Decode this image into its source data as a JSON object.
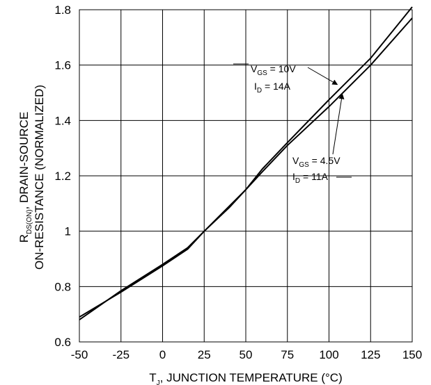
{
  "chart_data": {
    "type": "line",
    "xlabel": {
      "main": "T",
      "sub": "J",
      "rest": ", JUNCTION TEMPERATURE (°C)"
    },
    "ylabel": {
      "line1_main": "R",
      "line1_sub": "DS(ON)",
      "line1_rest": ", DRAIN-SOURCE",
      "line2": "ON-RESISTANCE (NORMALIZED)"
    },
    "xlim": [
      -50,
      150
    ],
    "ylim": [
      0.6,
      1.8
    ],
    "x_ticks": [
      -50,
      -25,
      0,
      25,
      50,
      75,
      100,
      125,
      150
    ],
    "x_tick_labels": [
      "-50",
      "-25",
      "0",
      "25",
      "50",
      "75",
      "100",
      "125",
      "150"
    ],
    "y_ticks": [
      0.6,
      0.8,
      1.0,
      1.2,
      1.4,
      1.6,
      1.8
    ],
    "y_tick_labels": [
      "0.6",
      "0.8",
      "1",
      "1.2",
      "1.4",
      "1.6",
      "1.8"
    ],
    "grid": true,
    "series": [
      {
        "x": [
          -50,
          -25,
          0,
          15,
          25,
          40,
          50,
          60,
          75,
          100,
          125,
          150
        ],
        "y": [
          0.69,
          0.78,
          0.875,
          0.935,
          1.0,
          1.085,
          1.15,
          1.225,
          1.32,
          1.475,
          1.625,
          1.81
        ]
      },
      {
        "x": [
          -50,
          -25,
          0,
          15,
          25,
          40,
          50,
          60,
          75,
          100,
          125,
          150
        ],
        "y": [
          0.68,
          0.785,
          0.88,
          0.94,
          1.0,
          1.09,
          1.15,
          1.215,
          1.31,
          1.45,
          1.6,
          1.77
        ]
      }
    ],
    "annotations": [
      {
        "lines": [
          {
            "main": "V",
            "sub": "GS",
            "rest": " = 10V"
          },
          {
            "main": "I",
            "sub": "D",
            "rest": " = 14A"
          }
        ],
        "points_to": {
          "series": 0,
          "x": 105,
          "y": 1.53
        }
      },
      {
        "lines": [
          {
            "main": "V",
            "sub": "GS",
            "rest": " = 4.5V"
          },
          {
            "main": "I",
            "sub": "D",
            "rest": " = 11A"
          }
        ],
        "points_to": {
          "series": 1,
          "x": 108,
          "y": 1.495
        }
      }
    ]
  }
}
